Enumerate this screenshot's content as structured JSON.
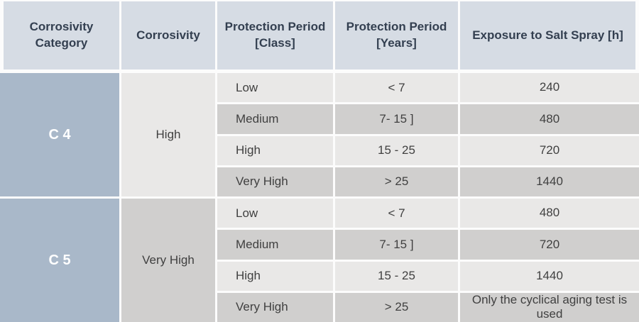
{
  "colors": {
    "header_bg": "#d6dce4",
    "header_text": "#333f50",
    "category_bg": "#a9b8c9",
    "category_text": "#ffffff",
    "row_light": "#e9e8e7",
    "row_dark": "#d0cfce",
    "body_text": "#404040",
    "separator": "#fcfcfc"
  },
  "table": {
    "headers": [
      "Corrosivity Category",
      "Corrosivity",
      "Protection Period [Class]",
      "Protection Period [Years]",
      "Exposure to Salt Spray [h]"
    ],
    "sections": [
      {
        "category": "C 4",
        "corrosivity": "High",
        "rows": [
          {
            "class": "Low",
            "years": "< 7",
            "exposure": "240"
          },
          {
            "class": "Medium",
            "years": "7- 15 ]",
            "exposure": "480"
          },
          {
            "class": "High",
            "years": "15 - 25",
            "exposure": "720"
          },
          {
            "class": "Very High",
            "years": "> 25",
            "exposure": "1440"
          }
        ]
      },
      {
        "category": "C 5",
        "corrosivity": "Very High",
        "rows": [
          {
            "class": "Low",
            "years": "< 7",
            "exposure": "480"
          },
          {
            "class": "Medium",
            "years": "7- 15 ]",
            "exposure": "720"
          },
          {
            "class": "High",
            "years": "15 - 25",
            "exposure": "1440"
          },
          {
            "class": "Very High",
            "years": "> 25",
            "exposure": "Only the cyclical aging test is used"
          }
        ]
      }
    ]
  }
}
